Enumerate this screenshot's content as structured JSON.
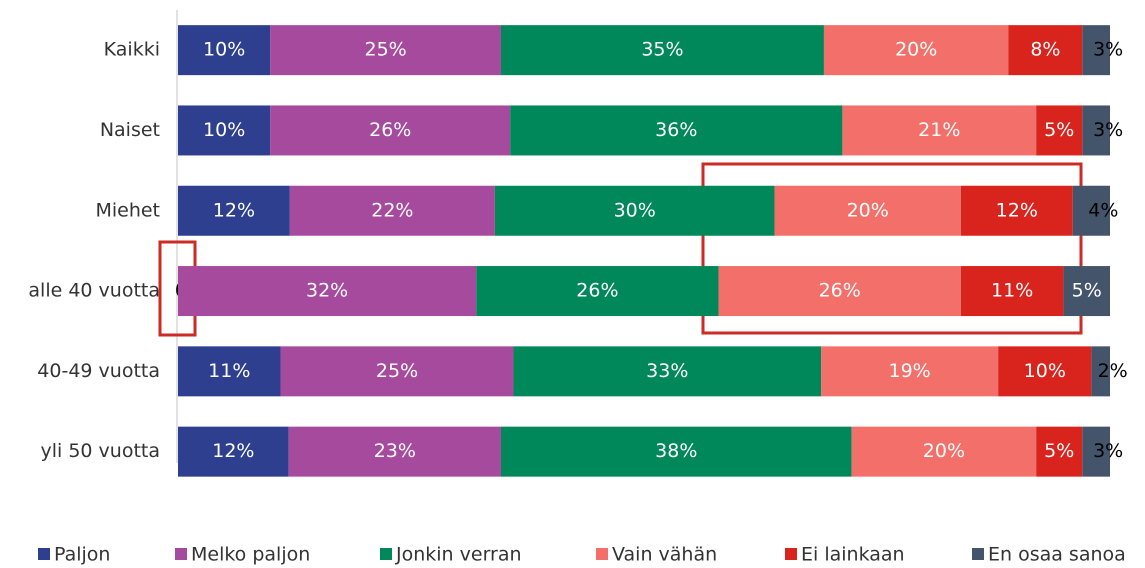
{
  "chart_data": {
    "type": "stacked-bar-horizontal",
    "categories": [
      "Kaikki",
      "Naiset",
      "Miehet",
      "alle 40 vuotta",
      "40-49 vuotta",
      "yli 50 vuotta"
    ],
    "series": [
      {
        "name": "Paljon",
        "color": "#2e3f8f",
        "values": [
          10,
          10,
          12,
          0,
          11,
          12
        ],
        "value_labels": [
          "10%",
          "10%",
          "12%",
          "0%",
          "11%",
          "12%"
        ]
      },
      {
        "name": "Melko paljon",
        "color": "#a64a9e",
        "values": [
          25,
          26,
          22,
          32,
          25,
          23
        ],
        "value_labels": [
          "25%",
          "26%",
          "22%",
          "32%",
          "25%",
          "23%"
        ]
      },
      {
        "name": "Jonkin verran",
        "color": "#00875a",
        "values": [
          35,
          36,
          30,
          26,
          33,
          38
        ],
        "value_labels": [
          "35%",
          "36%",
          "30%",
          "26%",
          "33%",
          "38%"
        ]
      },
      {
        "name": "Vain vähän",
        "color": "#f36f6a",
        "values": [
          20,
          21,
          20,
          26,
          19,
          20
        ],
        "value_labels": [
          "20%",
          "21%",
          "20%",
          "26%",
          "19%",
          "20%"
        ]
      },
      {
        "name": "Ei lainkaan",
        "color": "#d9241d",
        "values": [
          8,
          5,
          12,
          11,
          10,
          5
        ],
        "value_labels": [
          "8%",
          "5%",
          "12%",
          "11%",
          "10%",
          "5%"
        ]
      },
      {
        "name": "En osaa sanoa",
        "color": "#44546a",
        "values": [
          3,
          3,
          4,
          5,
          2,
          3
        ],
        "value_labels": [
          "3%",
          "3%",
          "4%",
          "5%",
          "2%",
          "3%"
        ]
      }
    ]
  }
}
